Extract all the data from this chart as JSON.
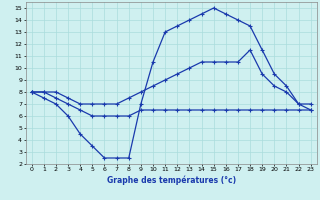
{
  "title": "Graphe des températures (°c)",
  "bg_color": "#cff0f0",
  "grid_color": "#aadddd",
  "line_color": "#1a3aad",
  "xlim": [
    -0.5,
    23.5
  ],
  "ylim": [
    2,
    15.5
  ],
  "xticks": [
    0,
    1,
    2,
    3,
    4,
    5,
    6,
    7,
    8,
    9,
    10,
    11,
    12,
    13,
    14,
    15,
    16,
    17,
    18,
    19,
    20,
    21,
    22,
    23
  ],
  "yticks": [
    2,
    3,
    4,
    5,
    6,
    7,
    8,
    9,
    10,
    11,
    12,
    13,
    14,
    15
  ],
  "line1_x": [
    0,
    1,
    2,
    3,
    4,
    5,
    6,
    7,
    8,
    9,
    10,
    11,
    12,
    13,
    14,
    15,
    16,
    17,
    18,
    19,
    20,
    21,
    22,
    23
  ],
  "line1_y": [
    8.0,
    8.0,
    7.5,
    7.0,
    6.5,
    6.0,
    6.0,
    6.0,
    6.0,
    6.5,
    6.5,
    6.5,
    6.5,
    6.5,
    6.5,
    6.5,
    6.5,
    6.5,
    6.5,
    6.5,
    6.5,
    6.5,
    6.5,
    6.5
  ],
  "line2_x": [
    0,
    1,
    2,
    3,
    4,
    5,
    6,
    7,
    8,
    9,
    10,
    11,
    12,
    13,
    14,
    15,
    16,
    17,
    18,
    19,
    20,
    21,
    22,
    23
  ],
  "line2_y": [
    8.0,
    8.0,
    8.0,
    7.5,
    7.0,
    7.0,
    7.0,
    7.0,
    7.5,
    8.0,
    8.5,
    9.0,
    9.5,
    10.0,
    10.5,
    10.5,
    10.5,
    10.5,
    11.5,
    9.5,
    8.5,
    8.0,
    7.0,
    7.0
  ],
  "line3_x": [
    0,
    1,
    2,
    3,
    4,
    5,
    6,
    7,
    8,
    9,
    10,
    11,
    12,
    13,
    14,
    15,
    16,
    17,
    18,
    19,
    20,
    21,
    22,
    23
  ],
  "line3_y": [
    8.0,
    7.5,
    7.0,
    6.0,
    4.5,
    3.5,
    2.5,
    2.5,
    2.5,
    7.0,
    10.5,
    13.0,
    13.5,
    14.0,
    14.5,
    15.0,
    14.5,
    14.0,
    13.5,
    11.5,
    9.5,
    8.5,
    7.0,
    6.5
  ]
}
